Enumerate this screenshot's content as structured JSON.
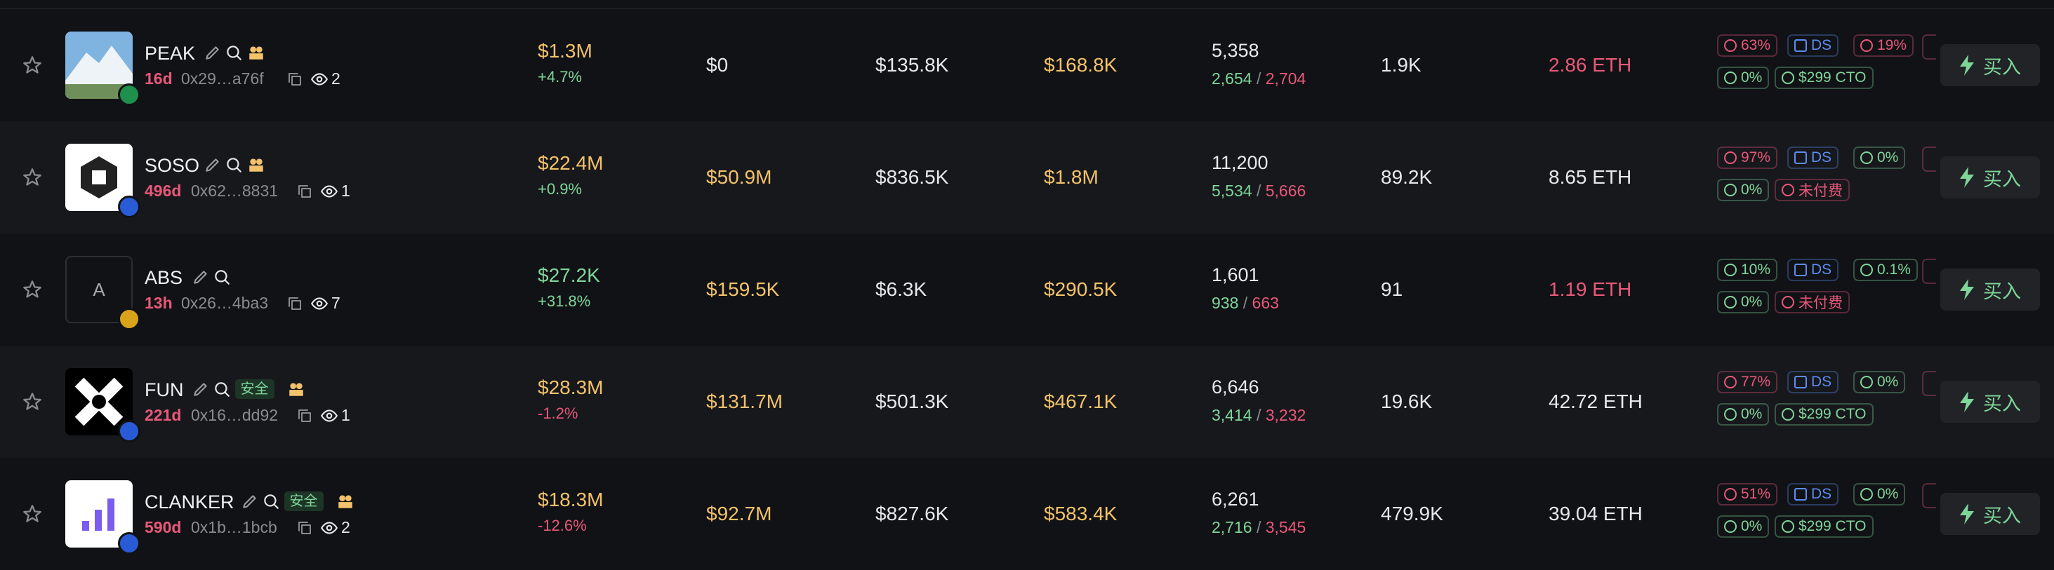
{
  "table": {
    "rows": [
      {
        "name": "PEAK",
        "age": "16d",
        "address": "0x29…a76f",
        "watchers": "2",
        "market_cap": "$1.3M",
        "change": "+4.7%",
        "col_a": "$0",
        "col_b": "$135.8K",
        "col_c": "$168.8K",
        "txns": "5,358",
        "buys": "2,654",
        "divider": "/",
        "sells": "2,704",
        "holders": "1.9K",
        "eth": "2.86 ETH",
        "badges": [
          "63%",
          "DS",
          "19%",
          "0%",
          "$299 CTO"
        ],
        "buy": "买入"
      },
      {
        "name": "SOSO",
        "age": "496d",
        "address": "0x62…8831",
        "watchers": "1",
        "market_cap": "$22.4M",
        "change": "+0.9%",
        "col_a": "$50.9M",
        "col_b": "$836.5K",
        "col_c": "$1.8M",
        "txns": "11,200",
        "buys": "5,534",
        "divider": "/",
        "sells": "5,666",
        "holders": "89.2K",
        "eth": "8.65 ETH",
        "badges": [
          "97%",
          "DS",
          "0%",
          "0%",
          "未付费"
        ],
        "buy": "买入"
      },
      {
        "name": "ABS",
        "avatar_letter": "A",
        "age": "13h",
        "address": "0x26…4ba3",
        "watchers": "7",
        "market_cap": "$27.2K",
        "change": "+31.8%",
        "col_a": "$159.5K",
        "col_b": "$6.3K",
        "col_c": "$290.5K",
        "txns": "1,601",
        "buys": "938",
        "divider": "/",
        "sells": "663",
        "holders": "91",
        "eth": "1.19 ETH",
        "badges": [
          "10%",
          "DS",
          "0.1%",
          "0%",
          "未付费"
        ],
        "buy": "买入"
      },
      {
        "name": "FUN",
        "tag": "安全",
        "age": "221d",
        "address": "0x16…dd92",
        "watchers": "1",
        "market_cap": "$28.3M",
        "change": "-1.2%",
        "col_a": "$131.7M",
        "col_b": "$501.3K",
        "col_c": "$467.1K",
        "txns": "6,646",
        "buys": "3,414",
        "divider": "/",
        "sells": "3,232",
        "holders": "19.6K",
        "eth": "42.72 ETH",
        "badges": [
          "77%",
          "DS",
          "0%",
          "0%",
          "$299 CTO"
        ],
        "buy": "买入"
      },
      {
        "name": "CLANKER",
        "tag": "安全",
        "age": "590d",
        "address": "0x1b…1bcb",
        "watchers": "2",
        "market_cap": "$18.3M",
        "change": "-12.6%",
        "col_a": "$92.7M",
        "col_b": "$827.6K",
        "col_c": "$583.4K",
        "txns": "6,261",
        "buys": "2,716",
        "divider": "/",
        "sells": "3,545",
        "holders": "479.9K",
        "eth": "39.04 ETH",
        "badges": [
          "51%",
          "DS",
          "0%",
          "0%",
          "$299 CTO"
        ],
        "buy": "买入"
      }
    ]
  }
}
